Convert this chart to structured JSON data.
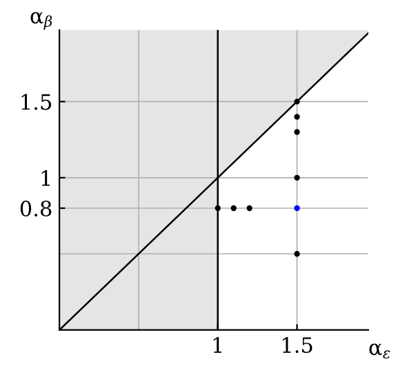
{
  "chart_data": {
    "type": "scatter",
    "xlabel": "α$_{ε}$",
    "ylabel": "α$_{β}$",
    "xlim": [
      0,
      1.95
    ],
    "ylim": [
      0,
      1.97
    ],
    "xticks": [
      {
        "value": 0.5,
        "label": null
      },
      1,
      1.5
    ],
    "yticks": [
      {
        "value": 0.5,
        "label": null
      },
      0.8,
      1,
      1.5
    ],
    "grid": true,
    "marker": "circle",
    "bands": [
      {
        "axis": "x",
        "from": 0,
        "to": 1,
        "color": "#e5e5e5"
      }
    ],
    "ref_lines": [
      {
        "axis": "x",
        "value": 1,
        "color": "#000000"
      }
    ],
    "series": [
      {
        "type": "line",
        "color": "#000000",
        "x": [
          0,
          1.95
        ],
        "values": [
          0,
          1.95
        ],
        "lower": [
          0,
          1.95
        ],
        "upper": [
          1.97,
          1.97
        ],
        "marker": "none"
      },
      {
        "color": "#000000",
        "x": [
          1,
          1.1,
          1.2,
          1.5,
          1.5,
          1.5,
          1.5,
          1.5
        ],
        "values": [
          0.8,
          0.8,
          0.8,
          1.5,
          1.4,
          1.3,
          1,
          0.5
        ]
      },
      {
        "color": "#0000ff",
        "x": [
          1.5
        ],
        "values": [
          0.8
        ]
      }
    ]
  }
}
